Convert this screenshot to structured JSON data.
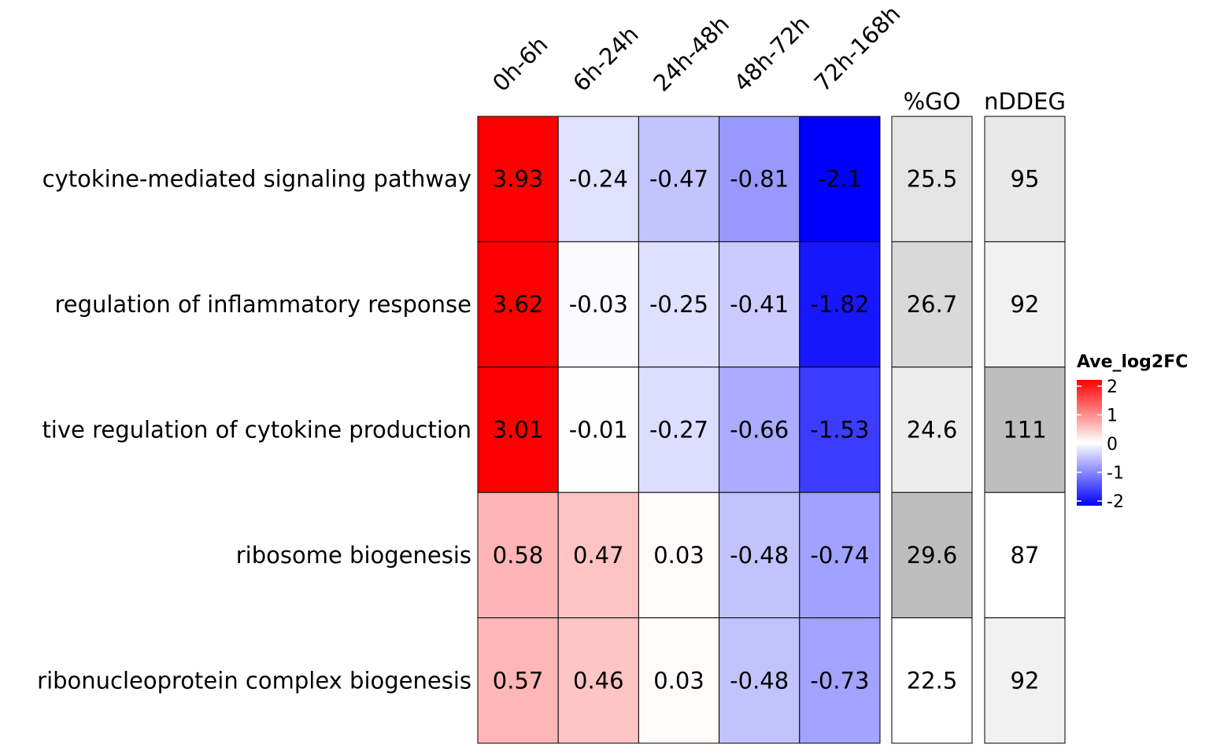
{
  "chart_data": {
    "type": "heatmap",
    "rows": [
      "cytokine-mediated signaling pathway",
      "regulation of inflammatory response",
      "tive regulation of cytokine production",
      "ribosome biogenesis",
      "ribonucleoprotein complex biogenesis"
    ],
    "columns": [
      "0h-6h",
      "6h-24h",
      "24h-48h",
      "48h-72h",
      "72h-168h"
    ],
    "values": [
      [
        3.93,
        -0.24,
        -0.47,
        -0.81,
        -2.1
      ],
      [
        3.62,
        -0.03,
        -0.25,
        -0.41,
        -1.82
      ],
      [
        3.01,
        -0.01,
        -0.27,
        -0.66,
        -1.53
      ],
      [
        0.58,
        0.47,
        0.03,
        -0.48,
        -0.74
      ],
      [
        0.57,
        0.46,
        0.03,
        -0.48,
        -0.73
      ]
    ],
    "value_labels": [
      [
        "3.93",
        "-0.24",
        "-0.47",
        "-0.81",
        "-2.1"
      ],
      [
        "3.62",
        "-0.03",
        "-0.25",
        "-0.41",
        "-1.82"
      ],
      [
        "3.01",
        "-0.01",
        "-0.27",
        "-0.66",
        "-1.53"
      ],
      [
        "0.58",
        "0.47",
        "0.03",
        "-0.48",
        "-0.74"
      ],
      [
        "0.57",
        "0.46",
        "0.03",
        "-0.48",
        "-0.73"
      ]
    ],
    "color_scale": {
      "title": "Ave_log2FC",
      "min": -2,
      "max": 2,
      "low_color": "#0000ff",
      "mid_color": "#ffffff",
      "high_color": "#ff0000",
      "ticks": [
        "2",
        "1",
        "0",
        "-1",
        "-2"
      ]
    },
    "annotations": [
      {
        "title": "%GO",
        "values": [
          25.5,
          26.7,
          24.6,
          29.6,
          22.5
        ],
        "labels": [
          "25.5",
          "26.7",
          "24.6",
          "29.6",
          "22.5"
        ],
        "low_color": "#ffffff",
        "high_color": "#bebebe"
      },
      {
        "title": "nDDEG",
        "values": [
          95,
          92,
          111,
          87,
          92
        ],
        "labels": [
          "95",
          "92",
          "111",
          "87",
          "92"
        ],
        "low_color": "#ffffff",
        "high_color": "#bebebe"
      }
    ]
  }
}
